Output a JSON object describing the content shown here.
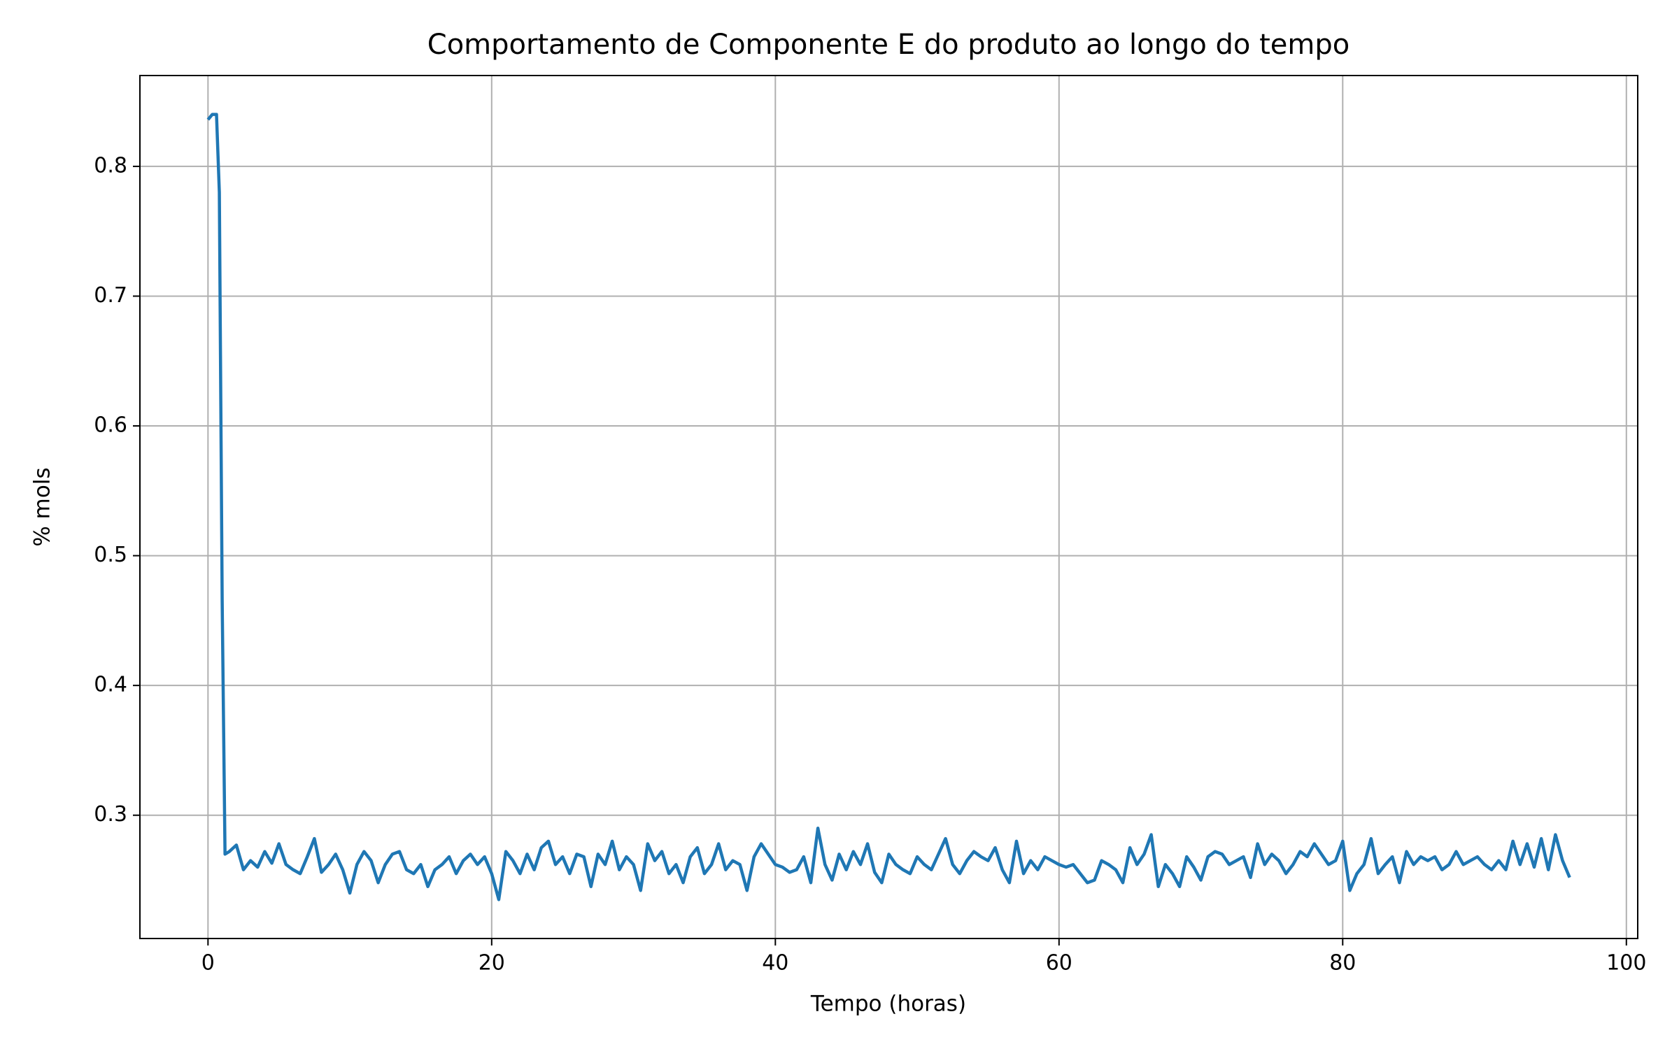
{
  "chart_data": {
    "type": "line",
    "title": "Comportamento de Componente E do produto ao longo do tempo",
    "xlabel": "Tempo (horas)",
    "ylabel": "% mols",
    "x": [
      0,
      0.3,
      0.6,
      0.8,
      1.0,
      1.2,
      1.5,
      2,
      2.5,
      3,
      3.5,
      4,
      4.5,
      5,
      5.5,
      6,
      6.5,
      7,
      7.5,
      8,
      8.5,
      9,
      9.5,
      10,
      10.5,
      11,
      11.5,
      12,
      12.5,
      13,
      13.5,
      14,
      14.5,
      15,
      15.5,
      16,
      16.5,
      17,
      17.5,
      18,
      18.5,
      19,
      19.5,
      20,
      20.5,
      21,
      21.5,
      22,
      22.5,
      23,
      23.5,
      24,
      24.5,
      25,
      25.5,
      26,
      26.5,
      27,
      27.5,
      28,
      28.5,
      29,
      29.5,
      30,
      30.5,
      31,
      31.5,
      32,
      32.5,
      33,
      33.5,
      34,
      34.5,
      35,
      35.5,
      36,
      36.5,
      37,
      37.5,
      38,
      38.5,
      39,
      39.5,
      40,
      40.5,
      41,
      41.5,
      42,
      42.5,
      43,
      43.5,
      44,
      44.5,
      45,
      45.5,
      46,
      46.5,
      47,
      47.5,
      48,
      48.5,
      49,
      49.5,
      50,
      50.5,
      51,
      51.5,
      52,
      52.5,
      53,
      53.5,
      54,
      54.5,
      55,
      55.5,
      56,
      56.5,
      57,
      57.5,
      58,
      58.5,
      59,
      59.5,
      60,
      60.5,
      61,
      61.5,
      62,
      62.5,
      63,
      63.5,
      64,
      64.5,
      65,
      65.5,
      66,
      66.5,
      67,
      67.5,
      68,
      68.5,
      69,
      69.5,
      70,
      70.5,
      71,
      71.5,
      72,
      72.5,
      73,
      73.5,
      74,
      74.5,
      75,
      75.5,
      76,
      76.5,
      77,
      77.5,
      78,
      78.5,
      79,
      79.5,
      80,
      80.5,
      81,
      81.5,
      82,
      82.5,
      83,
      83.5,
      84,
      84.5,
      85,
      85.5,
      86,
      86.5,
      87,
      87.5,
      88,
      88.5,
      89,
      89.5,
      90,
      90.5,
      91,
      91.5,
      92,
      92.5,
      93,
      93.5,
      94,
      94.5,
      95,
      95.5,
      96
    ],
    "series": [
      {
        "color": "#1f77b4",
        "values": [
          0.836,
          0.84,
          0.84,
          0.78,
          0.465,
          0.27,
          0.272,
          0.277,
          0.258,
          0.265,
          0.26,
          0.272,
          0.263,
          0.278,
          0.262,
          0.258,
          0.255,
          0.268,
          0.282,
          0.256,
          0.262,
          0.27,
          0.258,
          0.24,
          0.262,
          0.272,
          0.265,
          0.248,
          0.262,
          0.27,
          0.272,
          0.258,
          0.255,
          0.262,
          0.245,
          0.258,
          0.262,
          0.268,
          0.255,
          0.265,
          0.27,
          0.262,
          0.268,
          0.255,
          0.235,
          0.272,
          0.265,
          0.255,
          0.27,
          0.258,
          0.275,
          0.28,
          0.262,
          0.268,
          0.255,
          0.27,
          0.268,
          0.245,
          0.27,
          0.262,
          0.28,
          0.258,
          0.268,
          0.262,
          0.242,
          0.278,
          0.265,
          0.272,
          0.255,
          0.262,
          0.248,
          0.268,
          0.275,
          0.255,
          0.262,
          0.278,
          0.258,
          0.265,
          0.262,
          0.242,
          0.268,
          0.278,
          0.27,
          0.262,
          0.26,
          0.256,
          0.258,
          0.268,
          0.248,
          0.29,
          0.262,
          0.25,
          0.27,
          0.258,
          0.272,
          0.262,
          0.278,
          0.256,
          0.248,
          0.27,
          0.262,
          0.258,
          0.255,
          0.268,
          0.262,
          0.258,
          0.27,
          0.282,
          0.262,
          0.255,
          0.265,
          0.272,
          0.268,
          0.265,
          0.275,
          0.258,
          0.248,
          0.28,
          0.255,
          0.265,
          0.258,
          0.268,
          0.265,
          0.262,
          0.26,
          0.262,
          0.255,
          0.248,
          0.25,
          0.265,
          0.262,
          0.258,
          0.248,
          0.275,
          0.262,
          0.27,
          0.285,
          0.245,
          0.262,
          0.255,
          0.245,
          0.268,
          0.26,
          0.25,
          0.268,
          0.272,
          0.27,
          0.262,
          0.265,
          0.268,
          0.252,
          0.278,
          0.262,
          0.27,
          0.265,
          0.255,
          0.262,
          0.272,
          0.268,
          0.278,
          0.27,
          0.262,
          0.265,
          0.28,
          0.242,
          0.255,
          0.262,
          0.282,
          0.255,
          0.262,
          0.268,
          0.248,
          0.272,
          0.262,
          0.268,
          0.265,
          0.268,
          0.258,
          0.262,
          0.272,
          0.262,
          0.265,
          0.268,
          0.262,
          0.258,
          0.265,
          0.258,
          0.28,
          0.262,
          0.278,
          0.26,
          0.282,
          0.258,
          0.285,
          0.265,
          0.252
        ]
      }
    ],
    "xlim": [
      -4.8,
      100.8
    ],
    "xticks": [
      0,
      20,
      40,
      60,
      80,
      100
    ],
    "ylim": [
      0.205,
      0.87
    ],
    "yticks": [
      0.3,
      0.4,
      0.5,
      0.6,
      0.7,
      0.8
    ],
    "grid": true
  }
}
